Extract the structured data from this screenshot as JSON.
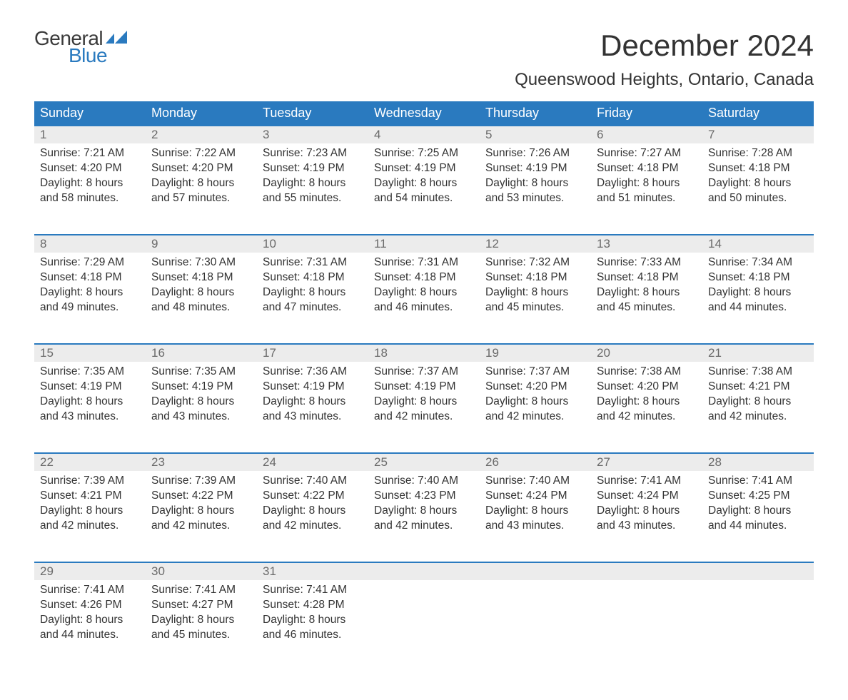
{
  "logo": {
    "word1": "General",
    "word2": "Blue",
    "text_color_1": "#3a3a3a",
    "text_color_2": "#2a7abf",
    "flag_color": "#2a7abf"
  },
  "title": "December 2024",
  "subtitle": "Queenswood Heights, Ontario, Canada",
  "colors": {
    "header_bg": "#2a7abf",
    "header_text": "#ffffff",
    "daynum_bg": "#ececec",
    "daynum_text": "#6a6a6a",
    "row_border": "#2a7abf",
    "body_text": "#333333",
    "page_bg": "#ffffff"
  },
  "typography": {
    "title_fontsize": 42,
    "subtitle_fontsize": 24,
    "header_fontsize": 18,
    "daynum_fontsize": 17,
    "body_fontsize": 15.5,
    "logo_fontsize": 28
  },
  "weekdays": [
    "Sunday",
    "Monday",
    "Tuesday",
    "Wednesday",
    "Thursday",
    "Friday",
    "Saturday"
  ],
  "weeks": [
    [
      {
        "n": "1",
        "sr": "Sunrise: 7:21 AM",
        "ss": "Sunset: 4:20 PM",
        "d1": "Daylight: 8 hours",
        "d2": "and 58 minutes."
      },
      {
        "n": "2",
        "sr": "Sunrise: 7:22 AM",
        "ss": "Sunset: 4:20 PM",
        "d1": "Daylight: 8 hours",
        "d2": "and 57 minutes."
      },
      {
        "n": "3",
        "sr": "Sunrise: 7:23 AM",
        "ss": "Sunset: 4:19 PM",
        "d1": "Daylight: 8 hours",
        "d2": "and 55 minutes."
      },
      {
        "n": "4",
        "sr": "Sunrise: 7:25 AM",
        "ss": "Sunset: 4:19 PM",
        "d1": "Daylight: 8 hours",
        "d2": "and 54 minutes."
      },
      {
        "n": "5",
        "sr": "Sunrise: 7:26 AM",
        "ss": "Sunset: 4:19 PM",
        "d1": "Daylight: 8 hours",
        "d2": "and 53 minutes."
      },
      {
        "n": "6",
        "sr": "Sunrise: 7:27 AM",
        "ss": "Sunset: 4:18 PM",
        "d1": "Daylight: 8 hours",
        "d2": "and 51 minutes."
      },
      {
        "n": "7",
        "sr": "Sunrise: 7:28 AM",
        "ss": "Sunset: 4:18 PM",
        "d1": "Daylight: 8 hours",
        "d2": "and 50 minutes."
      }
    ],
    [
      {
        "n": "8",
        "sr": "Sunrise: 7:29 AM",
        "ss": "Sunset: 4:18 PM",
        "d1": "Daylight: 8 hours",
        "d2": "and 49 minutes."
      },
      {
        "n": "9",
        "sr": "Sunrise: 7:30 AM",
        "ss": "Sunset: 4:18 PM",
        "d1": "Daylight: 8 hours",
        "d2": "and 48 minutes."
      },
      {
        "n": "10",
        "sr": "Sunrise: 7:31 AM",
        "ss": "Sunset: 4:18 PM",
        "d1": "Daylight: 8 hours",
        "d2": "and 47 minutes."
      },
      {
        "n": "11",
        "sr": "Sunrise: 7:31 AM",
        "ss": "Sunset: 4:18 PM",
        "d1": "Daylight: 8 hours",
        "d2": "and 46 minutes."
      },
      {
        "n": "12",
        "sr": "Sunrise: 7:32 AM",
        "ss": "Sunset: 4:18 PM",
        "d1": "Daylight: 8 hours",
        "d2": "and 45 minutes."
      },
      {
        "n": "13",
        "sr": "Sunrise: 7:33 AM",
        "ss": "Sunset: 4:18 PM",
        "d1": "Daylight: 8 hours",
        "d2": "and 45 minutes."
      },
      {
        "n": "14",
        "sr": "Sunrise: 7:34 AM",
        "ss": "Sunset: 4:18 PM",
        "d1": "Daylight: 8 hours",
        "d2": "and 44 minutes."
      }
    ],
    [
      {
        "n": "15",
        "sr": "Sunrise: 7:35 AM",
        "ss": "Sunset: 4:19 PM",
        "d1": "Daylight: 8 hours",
        "d2": "and 43 minutes."
      },
      {
        "n": "16",
        "sr": "Sunrise: 7:35 AM",
        "ss": "Sunset: 4:19 PM",
        "d1": "Daylight: 8 hours",
        "d2": "and 43 minutes."
      },
      {
        "n": "17",
        "sr": "Sunrise: 7:36 AM",
        "ss": "Sunset: 4:19 PM",
        "d1": "Daylight: 8 hours",
        "d2": "and 43 minutes."
      },
      {
        "n": "18",
        "sr": "Sunrise: 7:37 AM",
        "ss": "Sunset: 4:19 PM",
        "d1": "Daylight: 8 hours",
        "d2": "and 42 minutes."
      },
      {
        "n": "19",
        "sr": "Sunrise: 7:37 AM",
        "ss": "Sunset: 4:20 PM",
        "d1": "Daylight: 8 hours",
        "d2": "and 42 minutes."
      },
      {
        "n": "20",
        "sr": "Sunrise: 7:38 AM",
        "ss": "Sunset: 4:20 PM",
        "d1": "Daylight: 8 hours",
        "d2": "and 42 minutes."
      },
      {
        "n": "21",
        "sr": "Sunrise: 7:38 AM",
        "ss": "Sunset: 4:21 PM",
        "d1": "Daylight: 8 hours",
        "d2": "and 42 minutes."
      }
    ],
    [
      {
        "n": "22",
        "sr": "Sunrise: 7:39 AM",
        "ss": "Sunset: 4:21 PM",
        "d1": "Daylight: 8 hours",
        "d2": "and 42 minutes."
      },
      {
        "n": "23",
        "sr": "Sunrise: 7:39 AM",
        "ss": "Sunset: 4:22 PM",
        "d1": "Daylight: 8 hours",
        "d2": "and 42 minutes."
      },
      {
        "n": "24",
        "sr": "Sunrise: 7:40 AM",
        "ss": "Sunset: 4:22 PM",
        "d1": "Daylight: 8 hours",
        "d2": "and 42 minutes."
      },
      {
        "n": "25",
        "sr": "Sunrise: 7:40 AM",
        "ss": "Sunset: 4:23 PM",
        "d1": "Daylight: 8 hours",
        "d2": "and 42 minutes."
      },
      {
        "n": "26",
        "sr": "Sunrise: 7:40 AM",
        "ss": "Sunset: 4:24 PM",
        "d1": "Daylight: 8 hours",
        "d2": "and 43 minutes."
      },
      {
        "n": "27",
        "sr": "Sunrise: 7:41 AM",
        "ss": "Sunset: 4:24 PM",
        "d1": "Daylight: 8 hours",
        "d2": "and 43 minutes."
      },
      {
        "n": "28",
        "sr": "Sunrise: 7:41 AM",
        "ss": "Sunset: 4:25 PM",
        "d1": "Daylight: 8 hours",
        "d2": "and 44 minutes."
      }
    ],
    [
      {
        "n": "29",
        "sr": "Sunrise: 7:41 AM",
        "ss": "Sunset: 4:26 PM",
        "d1": "Daylight: 8 hours",
        "d2": "and 44 minutes."
      },
      {
        "n": "30",
        "sr": "Sunrise: 7:41 AM",
        "ss": "Sunset: 4:27 PM",
        "d1": "Daylight: 8 hours",
        "d2": "and 45 minutes."
      },
      {
        "n": "31",
        "sr": "Sunrise: 7:41 AM",
        "ss": "Sunset: 4:28 PM",
        "d1": "Daylight: 8 hours",
        "d2": "and 46 minutes."
      },
      {
        "n": "",
        "sr": "",
        "ss": "",
        "d1": "",
        "d2": ""
      },
      {
        "n": "",
        "sr": "",
        "ss": "",
        "d1": "",
        "d2": ""
      },
      {
        "n": "",
        "sr": "",
        "ss": "",
        "d1": "",
        "d2": ""
      },
      {
        "n": "",
        "sr": "",
        "ss": "",
        "d1": "",
        "d2": ""
      }
    ]
  ]
}
